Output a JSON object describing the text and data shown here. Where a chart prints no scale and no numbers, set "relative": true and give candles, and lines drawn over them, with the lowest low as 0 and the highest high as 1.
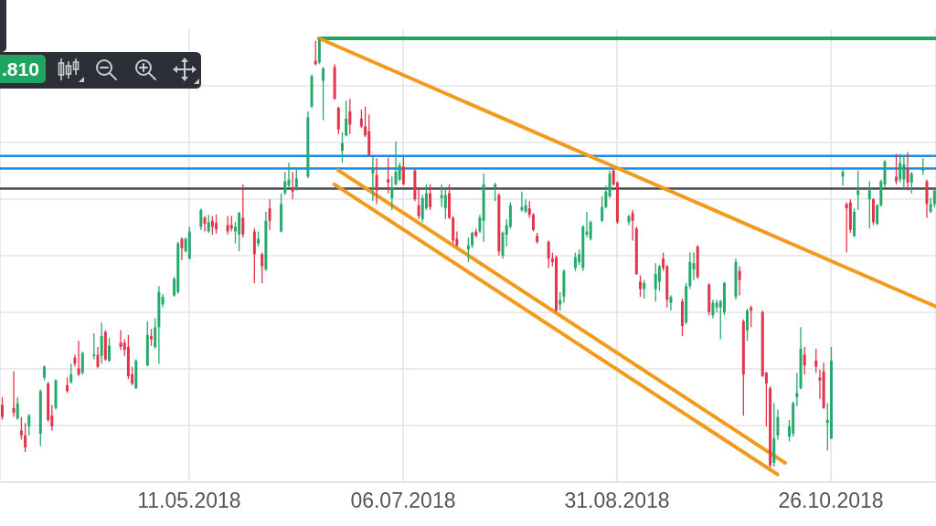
{
  "chart_data": {
    "type": "candlestick",
    "relative": true,
    "x": [
      "2018-03-23",
      "2018-03-26",
      "2018-03-27",
      "2018-03-28",
      "2018-03-29",
      "2018-03-30",
      "2018-04-02",
      "2018-04-03",
      "2018-04-04",
      "2018-04-05",
      "2018-04-06",
      "2018-04-09",
      "2018-04-10",
      "2018-04-11",
      "2018-04-12",
      "2018-04-13",
      "2018-04-16",
      "2018-04-17",
      "2018-04-18",
      "2018-04-19",
      "2018-04-20",
      "2018-04-23",
      "2018-04-24",
      "2018-04-25",
      "2018-04-26",
      "2018-04-27",
      "2018-04-30",
      "2018-05-01",
      "2018-05-02",
      "2018-05-03",
      "2018-05-04",
      "2018-05-07",
      "2018-05-08",
      "2018-05-09",
      "2018-05-10",
      "2018-05-11",
      "2018-05-14",
      "2018-05-15",
      "2018-05-16",
      "2018-05-17",
      "2018-05-18",
      "2018-05-21",
      "2018-05-22",
      "2018-05-23",
      "2018-05-24",
      "2018-05-25",
      "2018-05-28",
      "2018-05-29",
      "2018-05-30",
      "2018-05-31",
      "2018-06-01",
      "2018-06-04",
      "2018-06-05",
      "2018-06-06",
      "2018-06-07",
      "2018-06-08",
      "2018-06-11",
      "2018-06-12",
      "2018-06-13",
      "2018-06-14",
      "2018-06-15",
      "2018-06-18",
      "2018-06-19",
      "2018-06-20",
      "2018-06-21",
      "2018-06-22",
      "2018-06-25",
      "2018-06-26",
      "2018-06-27",
      "2018-06-28",
      "2018-06-29",
      "2018-07-02",
      "2018-07-03",
      "2018-07-04",
      "2018-07-05",
      "2018-07-06",
      "2018-07-09",
      "2018-07-10",
      "2018-07-11",
      "2018-07-12",
      "2018-07-13",
      "2018-07-16",
      "2018-07-17",
      "2018-07-18",
      "2018-07-19",
      "2018-07-20",
      "2018-07-23",
      "2018-07-24",
      "2018-07-25",
      "2018-07-26",
      "2018-07-27",
      "2018-07-30",
      "2018-07-31",
      "2018-08-01",
      "2018-08-02",
      "2018-08-03",
      "2018-08-06",
      "2018-08-07",
      "2018-08-08",
      "2018-08-09",
      "2018-08-10",
      "2018-08-13",
      "2018-08-14",
      "2018-08-15",
      "2018-08-16",
      "2018-08-17",
      "2018-08-20",
      "2018-08-21",
      "2018-08-22",
      "2018-08-23",
      "2018-08-24",
      "2018-08-27",
      "2018-08-28",
      "2018-08-29",
      "2018-08-30",
      "2018-08-31",
      "2018-09-03",
      "2018-09-04",
      "2018-09-05",
      "2018-09-06",
      "2018-09-07",
      "2018-09-10",
      "2018-09-11",
      "2018-09-12",
      "2018-09-13",
      "2018-09-14",
      "2018-09-17",
      "2018-09-18",
      "2018-09-19",
      "2018-09-20",
      "2018-09-21",
      "2018-09-24",
      "2018-09-25",
      "2018-09-26",
      "2018-09-27",
      "2018-09-28",
      "2018-10-01",
      "2018-10-02",
      "2018-10-03",
      "2018-10-04",
      "2018-10-05",
      "2018-10-08",
      "2018-10-09",
      "2018-10-10",
      "2018-10-11",
      "2018-10-12",
      "2018-10-15",
      "2018-10-16",
      "2018-10-17",
      "2018-10-18",
      "2018-10-19",
      "2018-10-22",
      "2018-10-23",
      "2018-10-24",
      "2018-10-25",
      "2018-10-26",
      "2018-10-29",
      "2018-10-30",
      "2018-10-31",
      "2018-11-01",
      "2018-11-02",
      "2018-11-05",
      "2018-11-06",
      "2018-11-07",
      "2018-11-08",
      "2018-11-09",
      "2018-11-12",
      "2018-11-13",
      "2018-11-14",
      "2018-11-15",
      "2018-11-16",
      "2018-11-19",
      "2018-11-20",
      "2018-11-21",
      "2018-11-22"
    ],
    "ohlc": [
      [
        0.146,
        0.164,
        0.111,
        0.118
      ],
      [
        0.139,
        0.224,
        0.118,
        0.128
      ],
      [
        0.114,
        0.164,
        0.111,
        0.15
      ],
      [
        0.086,
        0.118,
        0.065,
        0.075
      ],
      [
        0.075,
        0.104,
        0.036,
        0.047
      ],
      [
        0.096,
        0.125,
        0.075,
        0.121
      ],
      [
        0.079,
        0.182,
        0.05,
        0.178
      ],
      [
        0.21,
        0.238,
        0.203,
        0.235
      ],
      [
        0.196,
        0.199,
        0.107,
        0.111
      ],
      [
        0.121,
        0.146,
        0.086,
        0.096
      ],
      [
        0.139,
        0.206,
        0.135,
        0.203
      ],
      [
        0.192,
        0.21,
        0.174,
        0.178
      ],
      [
        0.199,
        0.242,
        0.196,
        0.217
      ],
      [
        0.256,
        0.263,
        0.235,
        0.242
      ],
      [
        0.231,
        0.295,
        0.213,
        0.217
      ],
      [
        0.221,
        0.27,
        0.217,
        0.267
      ],
      [
        0.26,
        0.313,
        0.252,
        0.263
      ],
      [
        0.263,
        0.281,
        0.231,
        0.235
      ],
      [
        0.26,
        0.338,
        0.242,
        0.306
      ],
      [
        0.316,
        0.32,
        0.249,
        0.252
      ],
      [
        0.249,
        0.302,
        0.246,
        0.284
      ],
      [
        0.291,
        0.32,
        0.274,
        0.281
      ],
      [
        0.291,
        0.299,
        0.26,
        0.274
      ],
      [
        0.281,
        0.309,
        0.206,
        0.213
      ],
      [
        0.217,
        0.235,
        0.192,
        0.196
      ],
      [
        0.185,
        0.252,
        0.183,
        0.249
      ],
      [
        0.238,
        0.341,
        0.236,
        0.309
      ],
      [
        0.306,
        0.323,
        0.284,
        0.299
      ],
      [
        0.281,
        0.348,
        0.277,
        0.327
      ],
      [
        0.327,
        0.423,
        0.242,
        0.409
      ],
      [
        0.38,
        0.405,
        0.373,
        0.398
      ],
      [
        0.401,
        0.444,
        0.398,
        0.44
      ],
      [
        0.409,
        0.526,
        0.405,
        0.522
      ],
      [
        0.533,
        0.536,
        0.483,
        0.511
      ],
      [
        0.504,
        0.536,
        0.501,
        0.533
      ],
      [
        0.487,
        0.561,
        0.485,
        0.55
      ],
      [
        0.561,
        0.604,
        0.554,
        0.6
      ],
      [
        0.582,
        0.586,
        0.55,
        0.568
      ],
      [
        0.55,
        0.589,
        0.547,
        0.572
      ],
      [
        0.575,
        0.586,
        0.543,
        0.561
      ],
      [
        0.57,
        0.59,
        0.545,
        0.555
      ],
      [
        0.565,
        0.586,
        0.543,
        0.55
      ],
      [
        0.565,
        0.586,
        0.55,
        0.557
      ],
      [
        0.55,
        0.572,
        0.522,
        0.561
      ],
      [
        0.543,
        0.596,
        0.504,
        0.593
      ],
      [
        0.582,
        0.66,
        0.536,
        0.543
      ],
      [
        0.55,
        0.557,
        0.43,
        0.497
      ],
      [
        0.522,
        0.55,
        0.515,
        0.533
      ],
      [
        0.497,
        0.501,
        0.43,
        0.469
      ],
      [
        0.462,
        0.596,
        0.458,
        0.575
      ],
      [
        0.604,
        0.625,
        0.554,
        0.575
      ],
      [
        0.55,
        0.639,
        0.548,
        0.614
      ],
      [
        0.639,
        0.689,
        0.635,
        0.667
      ],
      [
        0.657,
        0.71,
        0.653,
        0.671
      ],
      [
        0.653,
        0.689,
        0.625,
        0.643
      ],
      [
        0.65,
        0.699,
        0.646,
        0.674
      ],
      [
        0.678,
        0.83,
        0.674,
        0.816
      ],
      [
        0.841,
        0.916,
        0.838,
        0.912
      ],
      [
        0.948,
        0.994,
        0.937,
        0.94
      ],
      [
        0.944,
        1,
        0.94,
        0.997
      ],
      [
        0.901,
        0.933,
        0.809,
        0.93
      ],
      [
        0.933,
        0.94,
        0.857,
        0.859
      ],
      [
        0.838,
        0.841,
        0.777,
        0.788
      ],
      [
        0.738,
        0.781,
        0.71,
        0.756
      ],
      [
        0.774,
        0.855,
        0.772,
        0.813
      ],
      [
        0.83,
        0.859,
        0.777,
        0.799
      ],
      [
        0.813,
        0.834,
        0.791,
        0.795
      ],
      [
        0.795,
        0.841,
        0.77,
        0.774
      ],
      [
        0.784,
        0.823,
        0.724,
        0.728
      ],
      [
        0.685,
        0.724,
        0.621,
        0.699
      ],
      [
        0.682,
        0.721,
        0.614,
        0.646
      ],
      [
        0.672,
        0.722,
        0.639,
        0.664
      ],
      [
        0.628,
        0.678,
        0.6,
        0.653
      ],
      [
        0.66,
        0.76,
        0.657,
        0.689
      ],
      [
        0.671,
        0.71,
        0.667,
        0.704
      ],
      [
        0.701,
        0.724,
        0.658,
        0.66
      ],
      [
        0.692,
        0.696,
        0.621,
        0.625
      ],
      [
        0.611,
        0.653,
        0.579,
        0.586
      ],
      [
        0.579,
        0.635,
        0.572,
        0.628
      ],
      [
        0.604,
        0.66,
        0.6,
        0.639
      ],
      [
        0.639,
        0.66,
        0.6,
        0.607
      ],
      [
        0.628,
        0.66,
        0.607,
        0.635
      ],
      [
        0.604,
        0.653,
        0.579,
        0.635
      ],
      [
        0.639,
        0.66,
        0.579,
        0.582
      ],
      [
        0.582,
        0.586,
        0.522,
        0.529
      ],
      [
        0.533,
        0.55,
        0.515,
        0.518
      ],
      [
        0.508,
        0.536,
        0.479,
        0.518
      ],
      [
        0.518,
        0.55,
        0.511,
        0.547
      ],
      [
        0.55,
        0.557,
        0.536,
        0.54
      ],
      [
        0.55,
        0.589,
        0.547,
        0.582
      ],
      [
        0.575,
        0.685,
        0.526,
        0.66
      ],
      [
        0.653,
        0.664,
        0.621,
        0.66
      ],
      [
        0.635,
        0.639,
        0.494,
        0.504
      ],
      [
        0.494,
        0.55,
        0.487,
        0.547
      ],
      [
        0.543,
        0.579,
        0.515,
        0.565
      ],
      [
        0.561,
        0.618,
        0.557,
        0.611
      ],
      [
        0.6,
        0.643,
        0.596,
        0.607
      ],
      [
        0.596,
        0.625,
        0.593,
        0.611
      ],
      [
        0.604,
        0.621,
        0.582,
        0.589
      ],
      [
        0.589,
        0.593,
        0.55,
        0.554
      ],
      [
        0.54,
        0.547,
        0.522,
        0.526
      ],
      [
        0.526,
        0.529,
        0.465,
        0.487
      ],
      [
        0.487,
        0.501,
        0.469,
        0.479
      ],
      [
        0.49,
        0.494,
        0.362,
        0.366
      ],
      [
        0.38,
        0.409,
        0.366,
        0.391
      ],
      [
        0.398,
        0.462,
        0.384,
        0.458
      ],
      [
        0.465,
        0.501,
        0.458,
        0.49
      ],
      [
        0.479,
        0.508,
        0.472,
        0.497
      ],
      [
        0.465,
        0.565,
        0.458,
        0.561
      ],
      [
        0.543,
        0.596,
        0.536,
        0.55
      ],
      [
        0.533,
        0.575,
        0.529,
        0.572
      ],
      [
        0.575,
        0.632,
        0.572,
        0.607
      ],
      [
        0.607,
        0.657,
        0.604,
        0.643
      ],
      [
        0.632,
        0.692,
        0.628,
        0.685
      ],
      [
        0.692,
        0.696,
        0.657,
        0.66
      ],
      [
        0.664,
        0.667,
        0.568,
        0.572
      ],
      [
        0.572,
        0.589,
        0.565,
        0.586
      ],
      [
        0.593,
        0.6,
        0.529,
        0.575
      ],
      [
        0.557,
        0.561,
        0.449,
        0.451
      ],
      [
        0.433,
        0.448,
        0.398,
        0.416
      ],
      [
        0.416,
        0.437,
        0.394,
        0.43
      ],
      [
        0.416,
        0.476,
        0.387,
        0.451
      ],
      [
        0.433,
        0.472,
        0.412,
        0.469
      ],
      [
        0.487,
        0.501,
        0.458,
        0.465
      ],
      [
        0.469,
        0.472,
        0.373,
        0.391
      ],
      [
        0.384,
        0.401,
        0.366,
        0.398
      ],
      [
        0.387,
        0.394,
        0.306,
        0.33
      ],
      [
        0.338,
        0.43,
        0.334,
        0.423
      ],
      [
        0.423,
        0.501,
        0.416,
        0.479
      ],
      [
        0.462,
        0.501,
        0.437,
        0.476
      ],
      [
        0.515,
        0.518,
        0.44,
        0.444
      ],
      [
        0.426,
        0.43,
        0.355,
        0.362
      ],
      [
        0.355,
        0.391,
        0.348,
        0.384
      ],
      [
        0.373,
        0.391,
        0.362,
        0.384
      ],
      [
        0.373,
        0.391,
        0.299,
        0.387
      ],
      [
        0.362,
        0.433,
        0.355,
        0.43
      ],
      [
        0.398,
        0.487,
        0.391,
        0.479
      ],
      [
        0.458,
        0.469,
        0.401,
        0.437
      ],
      [
        0.341,
        0.345,
        0.121,
        0.217
      ],
      [
        0.32,
        0.37,
        0.295,
        0.366
      ],
      [
        0.373,
        0.377,
        0.327,
        0.366
      ],
      [
        0.362,
        0.366,
        0.211,
        0.213
      ],
      [
        0.221,
        0.223,
        0.096,
        0.196
      ],
      [
        0.185,
        0.189,
        0,
        0.005
      ],
      [
        0.011,
        0.15,
        0.002,
        0.068
      ],
      [
        0.075,
        0.135,
        0.065,
        0.118
      ],
      [
        0.072,
        0.111,
        0.061,
        0.096
      ],
      [
        0.079,
        0.153,
        0.072,
        0.15
      ],
      [
        0.164,
        0.221,
        0.143,
        0.174
      ],
      [
        0.185,
        0.327,
        0.182,
        0.277
      ],
      [
        0.263,
        0.281,
        0.217,
        0.238
      ],
      [
        0.249,
        0.277,
        0.221,
        0.235
      ],
      [
        0.21,
        0.228,
        0.16,
        0.203
      ],
      [
        0.224,
        0.245,
        0.137,
        0.139
      ],
      [
        0.104,
        0.15,
        0.04,
        0.111
      ],
      [
        0.068,
        0.281,
        0.066,
        0.249
      ],
      [
        0.678,
        0.696,
        0.657,
        0.689
      ],
      [
        0.614,
        0.618,
        0.501,
        0.604
      ],
      [
        0.618,
        0.625,
        0.547,
        0.554
      ],
      [
        0.54,
        0.604,
        0.536,
        0.596
      ],
      [
        0.635,
        0.692,
        0.6,
        0.646
      ],
      [
        0.625,
        0.667,
        0.557,
        0.646
      ],
      [
        0.625,
        0.628,
        0.565,
        0.572
      ],
      [
        0.568,
        0.614,
        0.565,
        0.611
      ],
      [
        0.611,
        0.671,
        0.608,
        0.667
      ],
      [
        0.66,
        0.717,
        0.653,
        0.713
      ],
      [
        0.678,
        0.731,
        0.66,
        0.667
      ],
      [
        0.671,
        0.731,
        0.664,
        0.71
      ],
      [
        0.671,
        0.728,
        0.65,
        0.706
      ],
      [
        0.696,
        0.735,
        0.646,
        0.664
      ],
      [
        0.664,
        0.689,
        0.639,
        0.685
      ],
      [
        0.692,
        0.721,
        0.682,
        0.699
      ],
      [
        0.667,
        0.671,
        0.582,
        0.614
      ],
      [
        0.596,
        0.628,
        0.593,
        0.614
      ],
      [
        0.614,
        0.65,
        0.607,
        0.646
      ]
    ],
    "colors": [
      "#e5334b",
      "#e5334b",
      "#26a96c",
      "#e5334b",
      "#e5334b",
      "#26a96c",
      "#26a96c",
      "#26a96c",
      "#e5334b",
      "#e5334b",
      "#26a96c",
      "#e5334b",
      "#26a96c",
      "#e5334b",
      "#e5334b",
      "#26a96c",
      "#26a96c",
      "#e5334b",
      "#26a96c",
      "#e5334b",
      "#26a96c",
      "#e5334b",
      "#e5334b",
      "#e5334b",
      "#e5334b",
      "#26a96c",
      "#26a96c",
      "#e5334b",
      "#26a96c",
      "#26a96c",
      "#26a96c",
      "#26a96c",
      "#26a96c",
      "#e5334b",
      "#26a96c",
      "#26a96c",
      "#26a96c",
      "#e5334b",
      "#26a96c",
      "#e5334b",
      "#e5334b",
      "#e5334b",
      "#e5334b",
      "#26a96c",
      "#26a96c",
      "#e5334b",
      "#e5334b",
      "#26a96c",
      "#e5334b",
      "#26a96c",
      "#e5334b",
      "#26a96c",
      "#26a96c",
      "#26a96c",
      "#e5334b",
      "#26a96c",
      "#26a96c",
      "#26a96c",
      "#e5334b",
      "#26a96c",
      "#26a96c",
      "#e5334b",
      "#e5334b",
      "#26a96c",
      "#26a96c",
      "#e5334b",
      "#e5334b",
      "#e5334b",
      "#e5334b",
      "#26a96c",
      "#e5334b",
      "#e5334b",
      "#26a96c",
      "#26a96c",
      "#26a96c",
      "#e5334b",
      "#e5334b",
      "#e5334b",
      "#26a96c",
      "#26a96c",
      "#e5334b",
      "#26a96c",
      "#26a96c",
      "#e5334b",
      "#e5334b",
      "#e5334b",
      "#26a96c",
      "#26a96c",
      "#e5334b",
      "#26a96c",
      "#26a96c",
      "#26a96c",
      "#e5334b",
      "#26a96c",
      "#26a96c",
      "#26a96c",
      "#26a96c",
      "#26a96c",
      "#e5334b",
      "#e5334b",
      "#e5334b",
      "#e5334b",
      "#e5334b",
      "#e5334b",
      "#26a96c",
      "#26a96c",
      "#26a96c",
      "#26a96c",
      "#26a96c",
      "#26a96c",
      "#26a96c",
      "#26a96c",
      "#26a96c",
      "#26a96c",
      "#e5334b",
      "#e5334b",
      "#26a96c",
      "#e5334b",
      "#e5334b",
      "#e5334b",
      "#26a96c",
      "#26a96c",
      "#26a96c",
      "#e5334b",
      "#e5334b",
      "#26a96c",
      "#e5334b",
      "#26a96c",
      "#26a96c",
      "#26a96c",
      "#e5334b",
      "#e5334b",
      "#26a96c",
      "#26a96c",
      "#26a96c",
      "#26a96c",
      "#26a96c",
      "#e5334b",
      "#e5334b",
      "#26a96c",
      "#e5334b",
      "#e5334b",
      "#e5334b",
      "#e5334b",
      "#26a96c",
      "#26a96c",
      "#26a96c",
      "#26a96c",
      "#26a96c",
      "#26a96c",
      "#e5334b",
      "#e5334b",
      "#e5334b",
      "#e5334b",
      "#26a96c",
      "#26a96c",
      "#26a96c",
      "#e5334b",
      "#e5334b",
      "#26a96c",
      "#26a96c",
      "#26a96c",
      "#e5334b",
      "#26a96c",
      "#26a96c",
      "#26a96c",
      "#e5334b",
      "#26a96c",
      "#26a96c",
      "#e5334b",
      "#26a96c",
      "#26a96c",
      "#e5334b",
      "#26a96c",
      "#26a96c"
    ],
    "xlim": [
      "2018-03-22T12:00",
      "2018-11-22T12:00"
    ],
    "xticks": [
      {
        "value": "2018-05-11",
        "label": "11.05.2018"
      },
      {
        "value": "2018-07-06",
        "label": "06.07.2018"
      },
      {
        "value": "2018-08-31",
        "label": "31.08.2018"
      },
      {
        "value": "2018-10-26",
        "label": "26.10.2018"
      }
    ],
    "grid": true,
    "series": [
      {
        "type": "line",
        "x": [
          "2018-06-14",
          "2018-11-22T12:00"
        ],
        "values": [
          1,
          1
        ],
        "color": "#1fa463"
      },
      {
        "type": "line",
        "x": [
          "2018-06-14",
          "2018-11-22T12:00"
        ],
        "values": [
          1,
          0.375
        ],
        "color": "#f39a1e"
      },
      {
        "type": "line",
        "x": [
          "2018-06-19",
          "2018-10-14"
        ],
        "values": [
          0.693,
          0.011
        ],
        "color": "#f39a1e"
      },
      {
        "type": "line",
        "x": [
          "2018-06-18",
          "2018-10-12"
        ],
        "values": [
          0.66,
          -0.016
        ],
        "color": "#f39a1e"
      }
    ],
    "ref_lines": [
      {
        "axis": "y",
        "value": 0.726,
        "color": "#1e88e5"
      },
      {
        "axis": "y",
        "value": 0.697,
        "color": "#1e88e5"
      },
      {
        "axis": "y",
        "value": 0.65,
        "color": "#4a4a55"
      }
    ],
    "annotations": [
      ".810"
    ]
  }
}
